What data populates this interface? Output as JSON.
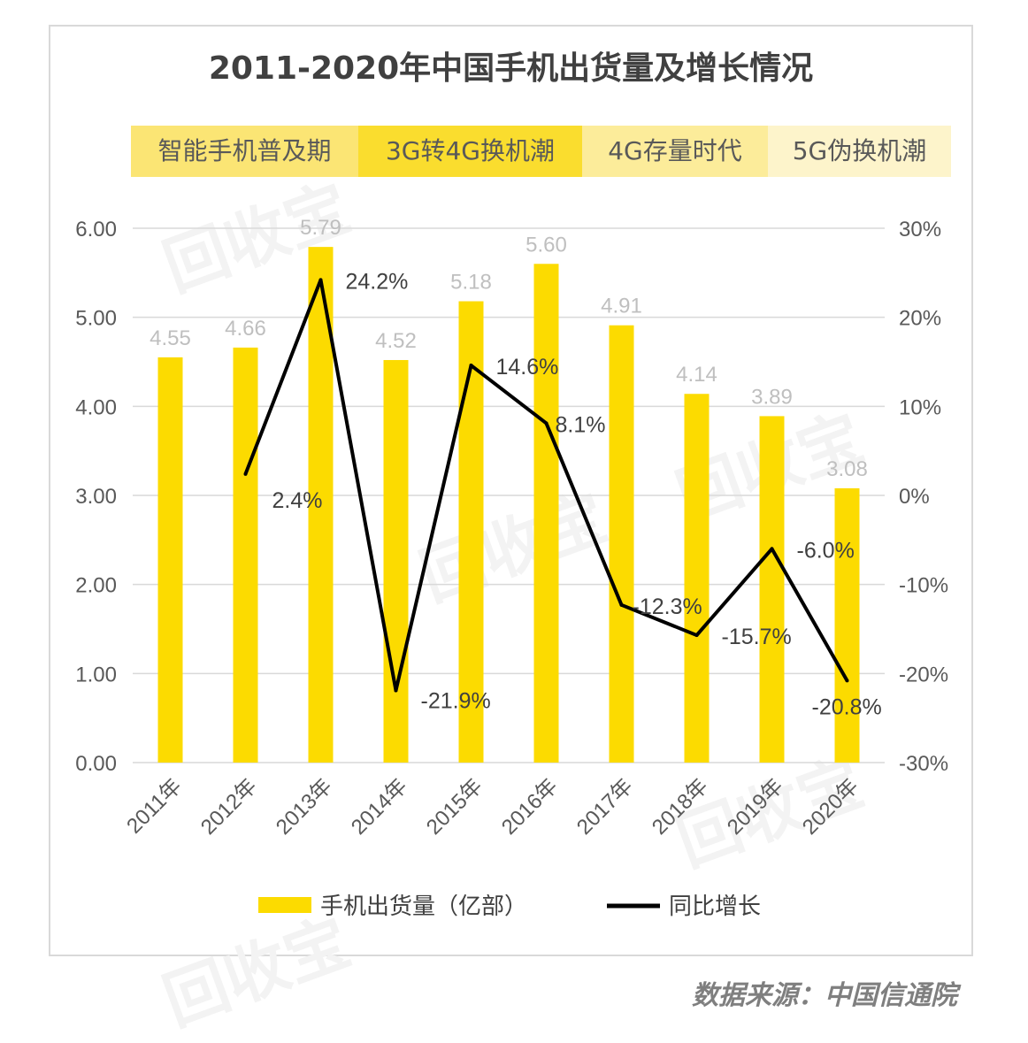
{
  "chart_data": {
    "type": "bar+line",
    "title": "2011-2020年中国手机出货量及增长情况",
    "phases": [
      {
        "label": "智能手机普及期",
        "color": "#fbe574"
      },
      {
        "label": "3G转4G换机潮",
        "color": "#fadd2e"
      },
      {
        "label": "4G存量时代",
        "color": "#fcec9a"
      },
      {
        "label": "5G伪换机潮",
        "color": "#fdf4cb"
      }
    ],
    "categories": [
      "2011年",
      "2012年",
      "2013年",
      "2014年",
      "2015年",
      "2016年",
      "2017年",
      "2018年",
      "2019年",
      "2020年"
    ],
    "series": [
      {
        "name": "手机出货量（亿部）",
        "type": "bar",
        "axis": "left",
        "color": "#fcdb00",
        "values": [
          4.55,
          4.66,
          5.79,
          4.52,
          5.18,
          5.6,
          4.91,
          4.14,
          3.89,
          3.08
        ],
        "labels": [
          "4.55",
          "4.66",
          "5.79",
          "4.52",
          "5.18",
          "5.60",
          "4.91",
          "4.14",
          "3.89",
          "3.08"
        ]
      },
      {
        "name": "同比增长",
        "type": "line",
        "axis": "right",
        "color": "#000000",
        "values": [
          null,
          2.4,
          24.2,
          -21.9,
          14.6,
          8.1,
          -12.3,
          -15.7,
          -6.0,
          -20.8
        ],
        "labels": [
          "",
          "2.4%",
          "24.2%",
          "-21.9%",
          "14.6%",
          "8.1%",
          "-12.3%",
          "-15.7%",
          "-6.0%",
          "-20.8%"
        ]
      }
    ],
    "y_left": {
      "ticks": [
        "0.00",
        "1.00",
        "2.00",
        "3.00",
        "4.00",
        "5.00",
        "6.00"
      ],
      "ylim": [
        0,
        6
      ]
    },
    "y_right": {
      "ticks": [
        "-30%",
        "-20%",
        "-10%",
        "0%",
        "10%",
        "20%",
        "30%"
      ],
      "ylim": [
        -30,
        30
      ]
    },
    "grid": true,
    "legend": "bottom"
  },
  "source": "数据来源：中国信通院",
  "watermark": "回收宝"
}
